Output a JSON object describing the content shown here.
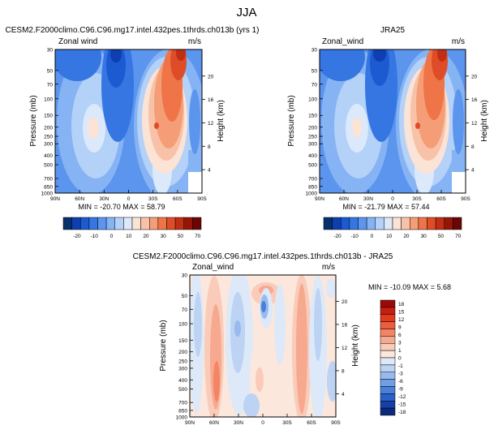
{
  "figure_title": "JJA",
  "chart_data": [
    {
      "type": "heatmap",
      "title": "CESM2.F2000climo.C96.C96.mg17.intel.432pes.1thrds.ch013b (yrs 1)",
      "left_label": "Zonal wind",
      "units": "m/s",
      "xlabel": "",
      "ylabel": "Pressure (mb)",
      "right_label": "Height (km)",
      "x_ticks": [
        "90N",
        "60N",
        "30N",
        "0",
        "30S",
        "60S",
        "90S"
      ],
      "y_ticks": [
        "30",
        "50",
        "70",
        "100",
        "150",
        "200",
        "250",
        "300",
        "400",
        "500",
        "700",
        "850",
        "1000"
      ],
      "height_ticks": [
        "20",
        "16",
        "12",
        "8",
        "4"
      ],
      "min_max": "MIN = -20.70   MAX = 58.79",
      "min": -20.7,
      "max": 58.79,
      "colorbar_labels": [
        "-20",
        "-10",
        "0",
        "10",
        "20",
        "30",
        "50",
        "70"
      ],
      "colors": [
        "#08306b",
        "#0d3fb0",
        "#1c5ad1",
        "#3576e3",
        "#5b95ee",
        "#86b3f3",
        "#b4d1f8",
        "#dce9fb",
        "#fbe3d6",
        "#f8c2a8",
        "#f59d76",
        "#ef7448",
        "#de4d27",
        "#c02f14",
        "#951508",
        "#6b0604"
      ]
    },
    {
      "type": "heatmap",
      "title": "JRA25",
      "left_label": "Zonal_wind",
      "units": "m/s",
      "xlabel": "",
      "ylabel": "Pressure (mb)",
      "right_label": "Height (km)",
      "x_ticks": [
        "90N",
        "60N",
        "30N",
        "0",
        "30S",
        "60S",
        "90S"
      ],
      "y_ticks": [
        "30",
        "50",
        "70",
        "100",
        "150",
        "200",
        "250",
        "300",
        "400",
        "500",
        "700",
        "850",
        "1000"
      ],
      "height_ticks": [
        "20",
        "16",
        "12",
        "8",
        "4"
      ],
      "min_max": "MIN = -21.79   MAX = 57.44",
      "min": -21.79,
      "max": 57.44,
      "colorbar_labels": [
        "-20",
        "-10",
        "0",
        "10",
        "20",
        "30",
        "50",
        "70"
      ],
      "colors": [
        "#08306b",
        "#0d3fb0",
        "#1c5ad1",
        "#3576e3",
        "#5b95ee",
        "#86b3f3",
        "#b4d1f8",
        "#dce9fb",
        "#fbe3d6",
        "#f8c2a8",
        "#f59d76",
        "#ef7448",
        "#de4d27",
        "#c02f14",
        "#951508",
        "#6b0604"
      ]
    },
    {
      "type": "heatmap",
      "title": "CESM2.F2000climo.C96.C96.mg17.intel.432pes.1thrds.ch013b - JRA25",
      "left_label": "Zonal_wind",
      "units": "m/s",
      "xlabel": "",
      "ylabel": "Pressure (mb)",
      "right_label": "Height (km)",
      "x_ticks": [
        "90N",
        "60N",
        "30N",
        "0",
        "30S",
        "60S",
        "90S"
      ],
      "y_ticks": [
        "30",
        "50",
        "70",
        "100",
        "150",
        "200",
        "250",
        "300",
        "400",
        "500",
        "700",
        "850",
        "1000"
      ],
      "height_ticks": [
        "20",
        "16",
        "12",
        "8",
        "4"
      ],
      "min_max": "MIN = -10.09   MAX =  5.68",
      "min": -10.09,
      "max": 5.68,
      "colorbar_labels": [
        "18",
        "15",
        "12",
        "9",
        "6",
        "3",
        "1",
        "0",
        "-1",
        "-3",
        "-6",
        "-9",
        "-12",
        "-15",
        "-18"
      ],
      "colors": [
        "#9b0a08",
        "#c41f10",
        "#e03a1f",
        "#ee5d3b",
        "#f48466",
        "#f7a98f",
        "#f9cbb8",
        "#fbe7dc",
        "#dde9f8",
        "#bcd3f3",
        "#98baee",
        "#719fe6",
        "#4a80da",
        "#2a60c8",
        "#1640a8",
        "#0b2a7e"
      ]
    }
  ]
}
